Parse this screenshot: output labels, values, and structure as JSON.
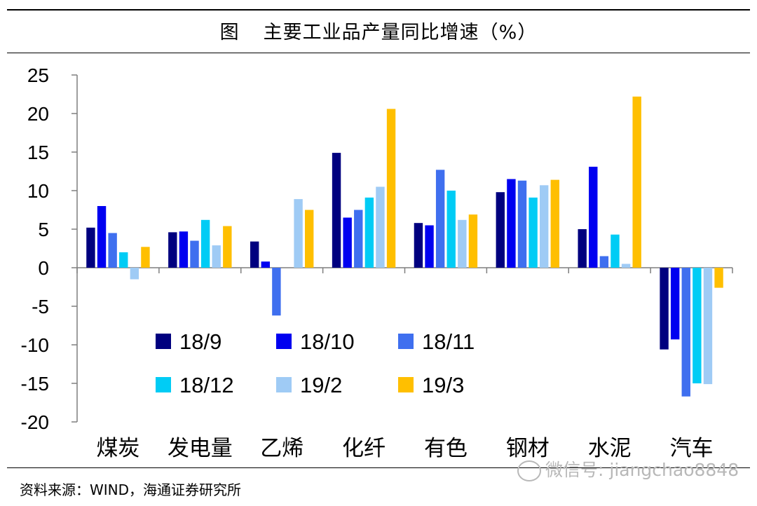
{
  "title": {
    "label": "图",
    "text": "主要工业品产量同比增速（%）"
  },
  "source": "资料来源：WIND，海通证券研究所",
  "watermark": "微信号: jiangchao8848",
  "chart_data": {
    "type": "bar",
    "title": "主要工业品产量同比增速（%）",
    "categories": [
      "煤炭",
      "发电量",
      "乙烯",
      "化纤",
      "有色",
      "钢材",
      "水泥",
      "汽车"
    ],
    "series": [
      {
        "name": "18/9",
        "color": "#00007F",
        "values": [
          5.2,
          4.6,
          3.4,
          14.9,
          5.8,
          9.8,
          5.0,
          -10.6
        ]
      },
      {
        "name": "18/10",
        "color": "#0000F0",
        "values": [
          8.0,
          4.7,
          0.8,
          6.5,
          5.5,
          11.5,
          13.1,
          -9.3
        ]
      },
      {
        "name": "18/11",
        "color": "#3F6FEF",
        "values": [
          4.5,
          3.5,
          -6.2,
          7.5,
          12.7,
          11.3,
          1.5,
          -16.7
        ]
      },
      {
        "name": "18/12",
        "color": "#00CCF5",
        "values": [
          2.0,
          6.2,
          0.0,
          9.1,
          10.0,
          9.1,
          4.3,
          -15.0
        ]
      },
      {
        "name": "19/2",
        "color": "#9FCBF5",
        "values": [
          -1.5,
          2.9,
          8.9,
          10.5,
          6.2,
          10.7,
          0.5,
          -15.1
        ]
      },
      {
        "name": "19/3",
        "color": "#FFBF00",
        "values": [
          2.7,
          5.4,
          7.5,
          20.6,
          6.9,
          11.4,
          22.2,
          -2.6
        ]
      }
    ],
    "ylim": [
      -20,
      25
    ],
    "yticks": [
      25,
      20,
      15,
      10,
      5,
      0,
      -5,
      -10,
      -15,
      -20
    ],
    "xlabel": "",
    "ylabel": "",
    "legend": "inside-bottom-left",
    "grid": false
  }
}
